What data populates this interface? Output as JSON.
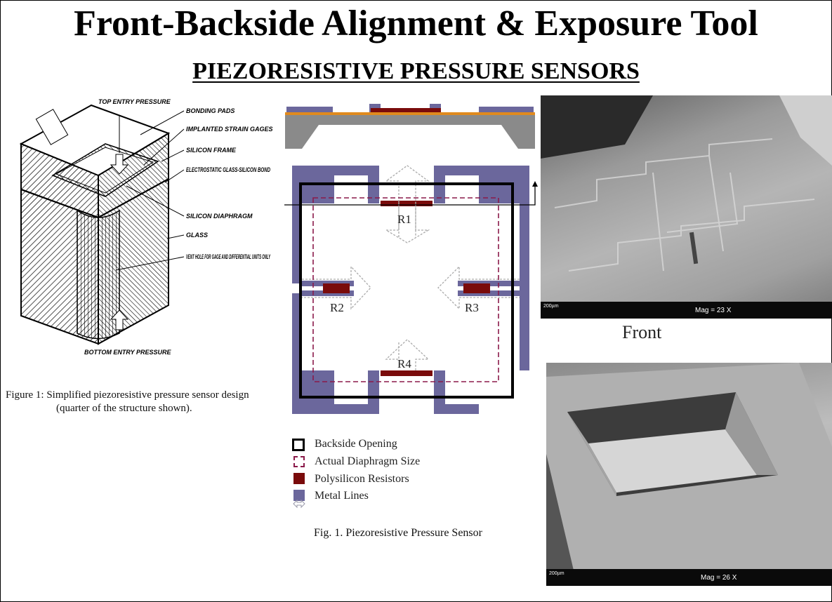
{
  "title": "Front-Backside  Alignment & Exposure Tool",
  "subtitle": "PIEZORESISTIVE PRESSURE SENSORS",
  "left_figure": {
    "labels": {
      "top_entry": "TOP ENTRY PRESSURE",
      "bonding_pads": "BONDING PADS",
      "strain_gages": "IMPLANTED STRAIN GAGES",
      "silicon_frame": "SILICON FRAME",
      "bond": "ELECTROSTATIC GLASS-SILICON BOND",
      "diaphragm": "SILICON DIAPHRAGM",
      "glass": "GLASS",
      "vent": "VENT HOLE FOR GAGE AND DIFFERENTIAL UNITS ONLY",
      "bottom_entry": "BOTTOM ENTRY PRESSURE"
    },
    "caption_line1": "Figure 1:  Simplified piezoresistive pressure sensor design",
    "caption_line2": "(quarter of the structure shown)."
  },
  "center_figure": {
    "resistors": [
      "R1",
      "R2",
      "R3",
      "R4"
    ],
    "legend": [
      {
        "key": "backside",
        "label": "Backside Opening"
      },
      {
        "key": "diaphragm",
        "label": "Actual Diaphragm Size"
      },
      {
        "key": "resistor",
        "label": "Polysilicon Resistors"
      },
      {
        "key": "metal",
        "label": "Metal Lines"
      }
    ],
    "caption": "Fig. 1. Piezoresistive Pressure Sensor",
    "colors": {
      "metal": "#6b679c",
      "resistor": "#7a0b0b",
      "oxide": "#e08a1e",
      "substrate": "#8a8a8a",
      "diaphragm": "#8b1a4a"
    }
  },
  "sem_front": {
    "label": "Front",
    "mag": "Mag =    23 X",
    "scale": "200µm"
  },
  "sem_back": {
    "mag": "Mag =    26 X",
    "scale": "200µm"
  }
}
